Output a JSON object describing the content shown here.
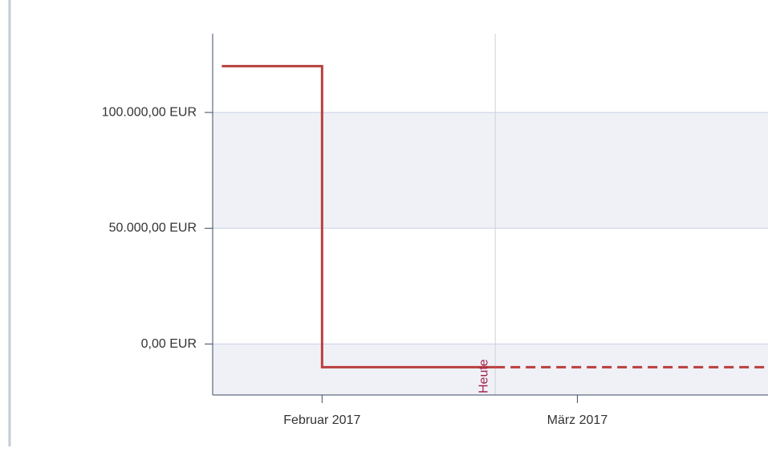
{
  "chart_data": {
    "type": "step",
    "series": [
      {
        "color": "#b8403e",
        "dash": false,
        "x": [
          "2017-01-21",
          "2017-02-01",
          "2017-02-01",
          "2017-02-20"
        ],
        "values": [
          120000,
          120000,
          -10000,
          -10000
        ]
      },
      {
        "color": "#b8403e",
        "dash": true,
        "x": [
          "2017-02-20",
          "2017-03-22"
        ],
        "values": [
          -10000,
          -10000
        ]
      }
    ],
    "xlim": [
      "2017-01-20",
      "2017-03-22"
    ],
    "xticks": [
      {
        "value": "2017-02-01",
        "label": "Februar 2017"
      },
      {
        "value": "2017-03-01",
        "label": "März 2017"
      }
    ],
    "ylim": [
      -22000,
      134000
    ],
    "yticks": [
      {
        "value": 0,
        "label": "0,00 EUR"
      },
      {
        "value": 50000,
        "label": "50.000,00 EUR"
      },
      {
        "value": 100000,
        "label": "100.000,00 EUR"
      }
    ],
    "grid": true,
    "annotations": [
      {
        "x": "2017-02-20",
        "text": "Heute",
        "color": "#a3234f"
      }
    ]
  }
}
